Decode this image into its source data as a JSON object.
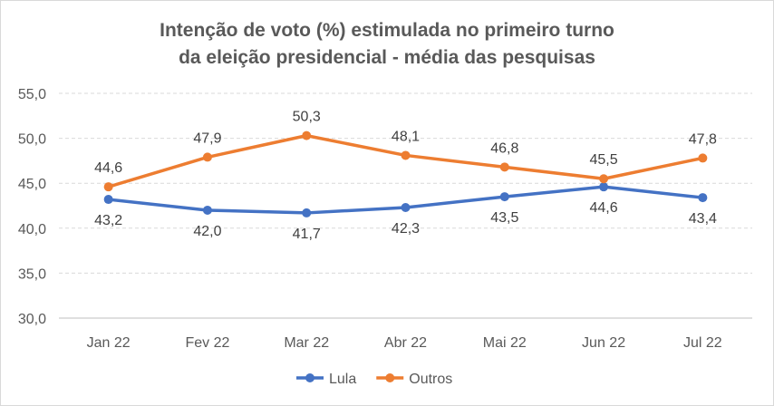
{
  "chart_data": {
    "type": "line",
    "title_line1": "Intenção de voto (%) estimulada no primeiro turno",
    "title_line2": "da eleição presidencial - média das pesquisas",
    "categories": [
      "Jan 22",
      "Fev 22",
      "Mar 22",
      "Abr 22",
      "Mai 22",
      "Jun 22",
      "Jul 22"
    ],
    "yticks": [
      "30,0",
      "35,0",
      "40,0",
      "45,0",
      "50,0",
      "55,0"
    ],
    "ylim": [
      30,
      55
    ],
    "grid": true,
    "legend_position": "bottom",
    "series": [
      {
        "name": "Lula",
        "color": "#4472c4",
        "values": [
          43.2,
          42.0,
          41.7,
          42.3,
          43.5,
          44.6,
          43.4
        ],
        "labels": [
          "43,2",
          "42,0",
          "41,7",
          "42,3",
          "43,5",
          "44,6",
          "43,4"
        ]
      },
      {
        "name": "Outros",
        "color": "#ed7d31",
        "values": [
          44.6,
          47.9,
          50.3,
          48.1,
          46.8,
          45.5,
          47.8
        ],
        "labels": [
          "44,6",
          "47,9",
          "50,3",
          "48,1",
          "46,8",
          "45,5",
          "47,8"
        ]
      }
    ]
  }
}
